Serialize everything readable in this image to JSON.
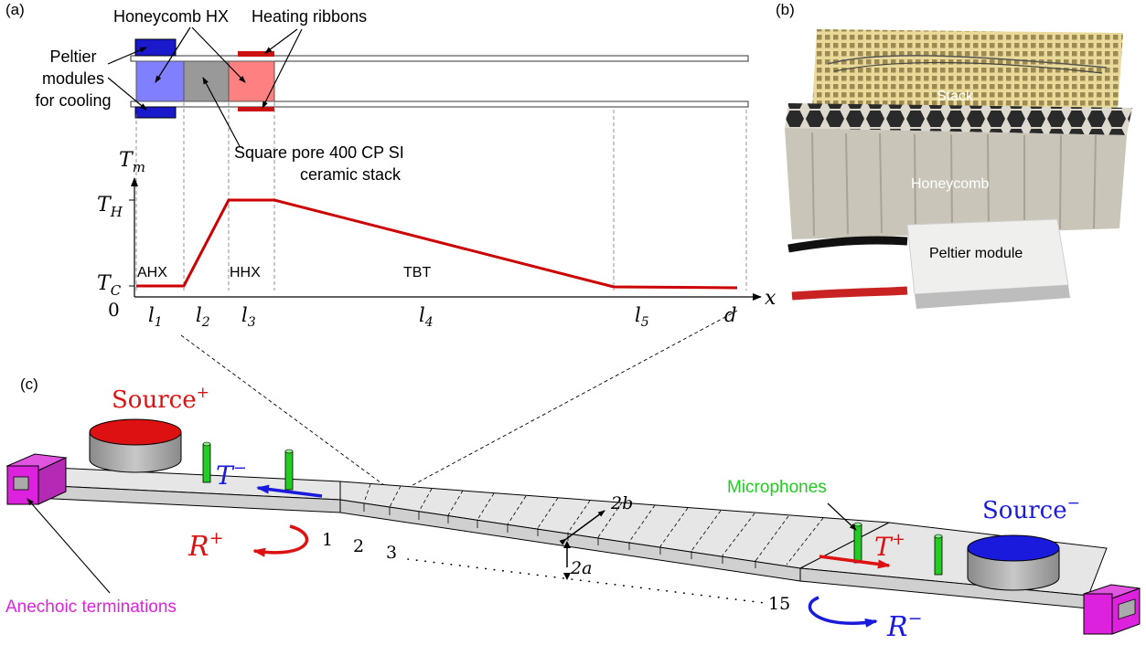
{
  "panel_labels": {
    "a": "(a)",
    "b": "(b)",
    "c": "(c)"
  },
  "panel_a": {
    "labels": {
      "honeycomb_hx": "Honeycomb HX",
      "heating_ribbons": "Heating ribbons",
      "peltier_line1": "Peltier",
      "peltier_line2": "modules",
      "peltier_line3": "for cooling",
      "stack_line1": "Square pore 400 CP SI",
      "stack_line2": "ceramic stack"
    },
    "plot": {
      "y_axis": "T",
      "y_axis_sub": "m",
      "x_axis": "x",
      "t_high": "T",
      "t_high_sub": "H",
      "t_cold": "T",
      "t_cold_sub": "C",
      "origin": "0",
      "region_ahx": "AHX",
      "region_hhx": "HHX",
      "region_tbt": "TBT",
      "segments": [
        {
          "base": "l",
          "sub": "1"
        },
        {
          "base": "l",
          "sub": "2"
        },
        {
          "base": "l",
          "sub": "3"
        },
        {
          "base": "l",
          "sub": "4"
        },
        {
          "base": "l",
          "sub": "5"
        },
        {
          "base": "d",
          "sub": ""
        }
      ]
    },
    "colors": {
      "peltier": "#1a1acc",
      "cold_hx": "#8080ff",
      "stack": "#999999",
      "hot_hx": "#ff8080",
      "ribbon": "#cc1111",
      "profile": "#cc0000"
    }
  },
  "panel_b": {
    "stack": "Stack",
    "honeycomb": "Honeycomb",
    "peltier": "Peltier module"
  },
  "panel_c": {
    "source_plus": "Source",
    "source_plus_sup": "+",
    "source_minus": "Source",
    "source_minus_sup": "−",
    "t_minus": "T",
    "t_minus_sup": "−",
    "t_plus": "T",
    "t_plus_sup": "+",
    "r_plus": "R",
    "r_plus_sup": "+",
    "r_minus": "R",
    "r_minus_sup": "−",
    "microphones": "Microphones",
    "anechoic": "Anechoic terminations",
    "dim_2b": "2b",
    "dim_2a": "2a",
    "cell_numbers": [
      "1",
      "2",
      "3"
    ],
    "cell_last": "15",
    "colors": {
      "source_plus": "#dd1111",
      "source_minus": "#1a1add",
      "mic": "#22cc22",
      "termination": "#dd22dd",
      "t_minus_arrow": "#1a1add",
      "t_plus_arrow": "#dd1111"
    }
  }
}
